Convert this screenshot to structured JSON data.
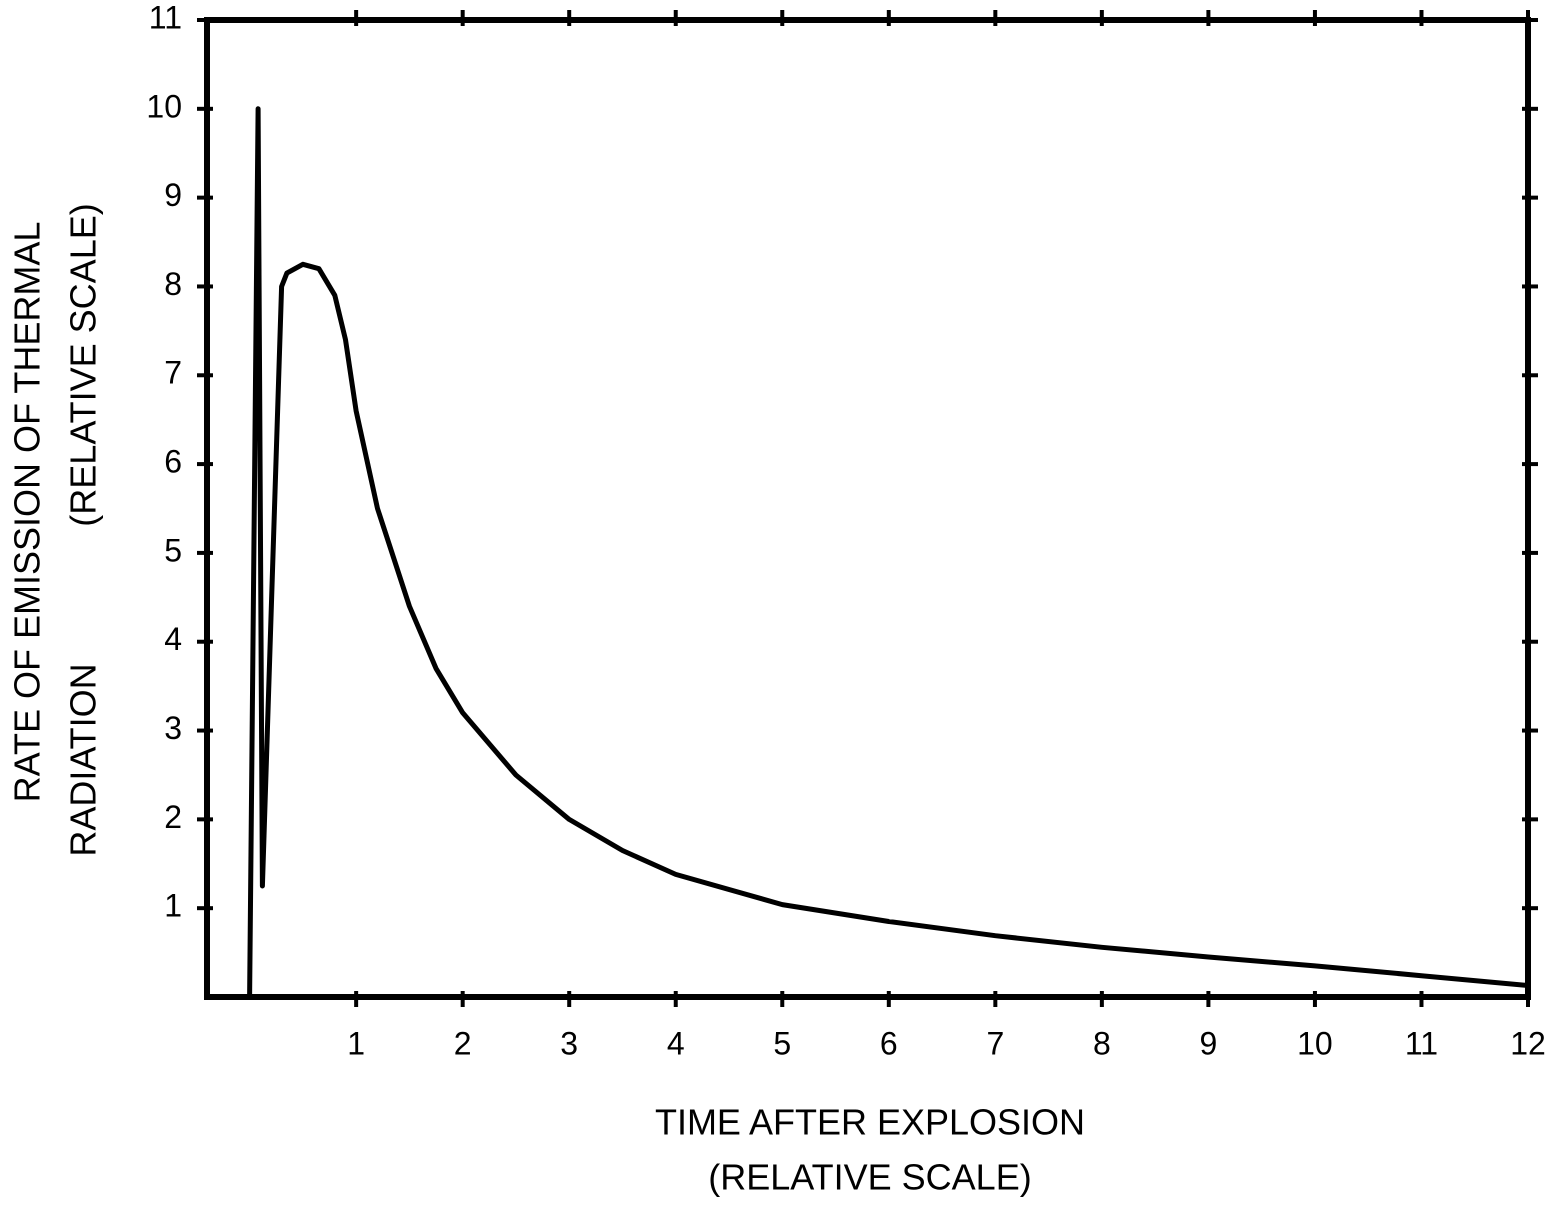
{
  "chart_data": {
    "type": "line",
    "x_label": [
      "TIME AFTER EXPLOSION",
      "(RELATIVE SCALE)"
    ],
    "y_label": [
      "RATE OF EMISSION OF THERMAL",
      "RADIATION",
      "(RELATIVE SCALE)"
    ],
    "x": [
      0,
      0.08,
      0.12,
      0.3,
      0.35,
      0.5,
      0.65,
      0.8,
      0.9,
      1.0,
      1.2,
      1.5,
      1.75,
      2,
      2.5,
      3,
      3.5,
      4,
      5,
      6,
      7,
      8,
      9,
      10,
      11,
      12
    ],
    "series": [
      {
        "color": "#000000",
        "values": [
          0,
          10,
          1.25,
          8.0,
          8.15,
          8.25,
          8.2,
          7.9,
          7.4,
          6.6,
          5.5,
          4.4,
          3.7,
          3.2,
          2.5,
          2.0,
          1.65,
          1.38,
          1.04,
          0.85,
          0.69,
          0.56,
          0.45,
          0.35,
          0.24,
          0.13
        ]
      }
    ],
    "xlim": [
      -0.4,
      12
    ],
    "ylim": [
      0,
      11
    ],
    "xticks": [
      1,
      2,
      3,
      4,
      5,
      6,
      7,
      8,
      9,
      10,
      11,
      12
    ],
    "yticks": [
      1,
      2,
      3,
      4,
      5,
      6,
      7,
      8,
      9,
      10,
      11
    ],
    "grid": false
  }
}
